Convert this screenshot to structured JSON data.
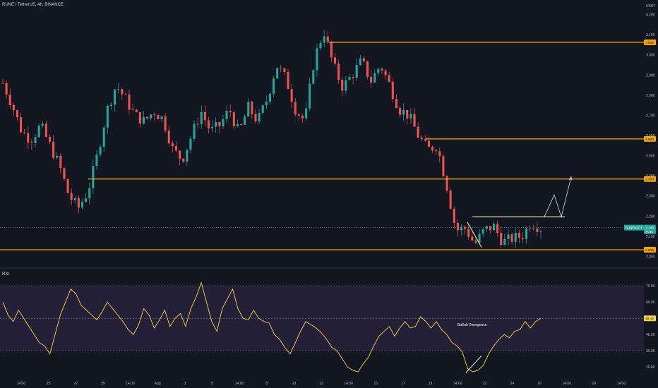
{
  "header": {
    "title": "RUNE / TetherUS, 4h, BINANCE",
    "currency": "USDT",
    "rsi_label": "RSI"
  },
  "colors": {
    "background": "#131722",
    "up": "#26a69a",
    "down": "#ef5350",
    "level": "#f7a600",
    "rsi_line": "#f7d54a",
    "rsi_band": "#2a2440",
    "pattern": "#f5f0c8",
    "projection": "#d9d9d9",
    "axis_text": "#b2b5be"
  },
  "chart_data": [
    {
      "type": "candlestick",
      "ylim": [
        1.97,
        3.23
      ],
      "y_ticks": [
        "3.200",
        "3.100",
        "3.000",
        "2.900",
        "2.800",
        "2.700",
        "2.600",
        "2.500",
        "2.400",
        "2.300",
        "2.200",
        "2.100",
        "2.000"
      ],
      "x_ticks": [
        "14:00",
        "25",
        "27",
        "29",
        "14:00",
        "Aug",
        "3",
        "5",
        "14:00",
        "8",
        "10",
        "12",
        "14:00",
        "15",
        "17",
        "19",
        "14:00",
        "22",
        "24",
        "26",
        "14:00",
        "29",
        "14:00"
      ],
      "price_levels": [
        {
          "label": "3.062",
          "value": 3.062
        },
        {
          "label": "2.583",
          "value": 2.583
        },
        {
          "label": "2.384",
          "value": 2.384
        },
        {
          "label": "2.033",
          "value": 2.033
        }
      ],
      "current_price": {
        "symbol": "RUNEUSDT",
        "value": "2.143",
        "countdown": "35:46"
      },
      "resistance_line": 2.196,
      "projection_path": [
        2.196,
        2.305,
        2.196,
        2.394
      ],
      "close_path": [
        2.86,
        2.75,
        2.62,
        2.58,
        2.65,
        2.55,
        2.45,
        2.3,
        2.24,
        2.32,
        2.5,
        2.72,
        2.85,
        2.78,
        2.7,
        2.67,
        2.72,
        2.68,
        2.53,
        2.48,
        2.6,
        2.72,
        2.62,
        2.65,
        2.73,
        2.61,
        2.74,
        2.67,
        2.78,
        2.95,
        2.88,
        2.73,
        2.67,
        2.98,
        3.12,
        2.95,
        2.84,
        2.9,
        2.97,
        2.87,
        2.95,
        2.85,
        2.73,
        2.7,
        2.6,
        2.53,
        2.55,
        2.36,
        2.13,
        2.14,
        2.06,
        2.13,
        2.15,
        2.07,
        2.09,
        2.1,
        2.17,
        2.14
      ],
      "bullish_divergence_price": [
        2.17,
        2.045
      ]
    },
    {
      "type": "line",
      "title": "RSI",
      "ylim": [
        14,
        74
      ],
      "band": [
        30,
        70
      ],
      "midline": 50,
      "y_ticks": [
        "70.00",
        "60.00",
        "40.00",
        "30.00",
        "20.00"
      ],
      "current_value": "48.42",
      "annotation": "Bullish Divergence",
      "values": [
        60,
        52,
        48,
        55,
        50,
        45,
        40,
        35,
        33,
        28,
        40,
        52,
        60,
        68,
        65,
        58,
        55,
        52,
        49,
        54,
        60,
        56,
        52,
        48,
        43,
        40,
        46,
        56,
        52,
        44,
        49,
        55,
        45,
        50,
        53,
        45,
        56,
        63,
        72,
        60,
        48,
        42,
        56,
        62,
        68,
        56,
        50,
        49,
        55,
        50,
        48,
        47,
        40,
        37,
        32,
        28,
        35,
        42,
        48,
        46,
        44,
        41,
        37,
        32,
        30,
        25,
        20,
        18,
        17,
        22,
        26,
        33,
        39,
        42,
        45,
        39,
        44,
        48,
        44,
        45,
        51,
        48,
        44,
        48,
        43,
        40,
        35,
        33,
        29,
        19,
        17,
        18,
        21,
        28,
        33,
        37,
        40,
        38,
        42,
        43,
        48,
        44,
        48,
        50
      ],
      "bullish_divergence_rsi": [
        16.5,
        27
      ]
    }
  ]
}
